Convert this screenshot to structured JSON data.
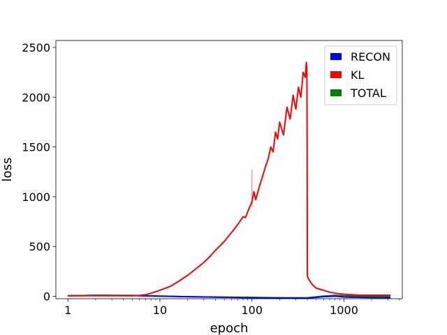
{
  "chart_data": {
    "type": "line",
    "xlabel": "epoch",
    "ylabel": "loss",
    "xscale": "log",
    "xlim": [
      0.74,
      4300
    ],
    "ylim": [
      -25,
      2570
    ],
    "x_ticks": [
      {
        "value": 1,
        "label": "1"
      },
      {
        "value": 10,
        "label": "10"
      },
      {
        "value": 100,
        "label": "100"
      },
      {
        "value": 1000,
        "label": "1000"
      }
    ],
    "y_ticks": [
      {
        "value": 0,
        "label": "0"
      },
      {
        "value": 500,
        "label": "500"
      },
      {
        "value": 1000,
        "label": "1000"
      },
      {
        "value": 1500,
        "label": "1500"
      },
      {
        "value": 2000,
        "label": "2000"
      },
      {
        "value": 2500,
        "label": "2500"
      }
    ],
    "grid": false,
    "legend": {
      "position": "top-right"
    },
    "series": [
      {
        "name": "RECON",
        "color": "#0000ff",
        "x": [
          1,
          2,
          5,
          10,
          20,
          50,
          100,
          200,
          400,
          600,
          800,
          1000,
          1500,
          2000,
          3200
        ],
        "y": [
          5,
          8,
          6,
          0,
          -5,
          -10,
          -15,
          -18,
          -20,
          -5,
          0,
          -8,
          -12,
          -14,
          -15
        ]
      },
      {
        "name": "KL",
        "color": "#ff0000",
        "x": [
          1,
          3,
          5,
          6,
          7,
          8,
          10,
          13,
          16,
          20,
          25,
          30,
          35,
          40,
          50,
          60,
          70,
          80,
          85,
          90,
          100,
          105,
          110,
          120,
          130,
          140,
          150,
          160,
          170,
          180,
          190,
          200,
          220,
          240,
          260,
          280,
          300,
          320,
          340,
          360,
          380,
          390,
          395,
          398,
          400,
          420,
          450,
          500,
          600,
          700,
          800,
          1000,
          1200,
          1500,
          2000,
          3200
        ],
        "y": [
          5,
          5,
          5,
          8,
          15,
          30,
          60,
          100,
          150,
          210,
          280,
          340,
          400,
          460,
          550,
          640,
          720,
          800,
          790,
          850,
          950,
          1050,
          970,
          1100,
          1200,
          1300,
          1380,
          1500,
          1450,
          1650,
          1580,
          1750,
          1620,
          1900,
          1780,
          2020,
          1880,
          2100,
          2000,
          2250,
          2200,
          2350,
          2300,
          1500,
          200,
          160,
          120,
          80,
          60,
          40,
          30,
          20,
          15,
          10,
          10,
          10
        ],
        "spikes": [
          {
            "x": 100,
            "y": 1270
          }
        ]
      },
      {
        "name": "TOTAL",
        "color": "#008000",
        "x": [
          1,
          2,
          5,
          10,
          20,
          50,
          100,
          200,
          400,
          600,
          800,
          1000,
          1500,
          2000,
          3200
        ],
        "y": [
          5,
          8,
          8,
          2,
          -5,
          -10,
          -12,
          -15,
          -15,
          2,
          8,
          5,
          0,
          -2,
          -3
        ]
      }
    ]
  }
}
